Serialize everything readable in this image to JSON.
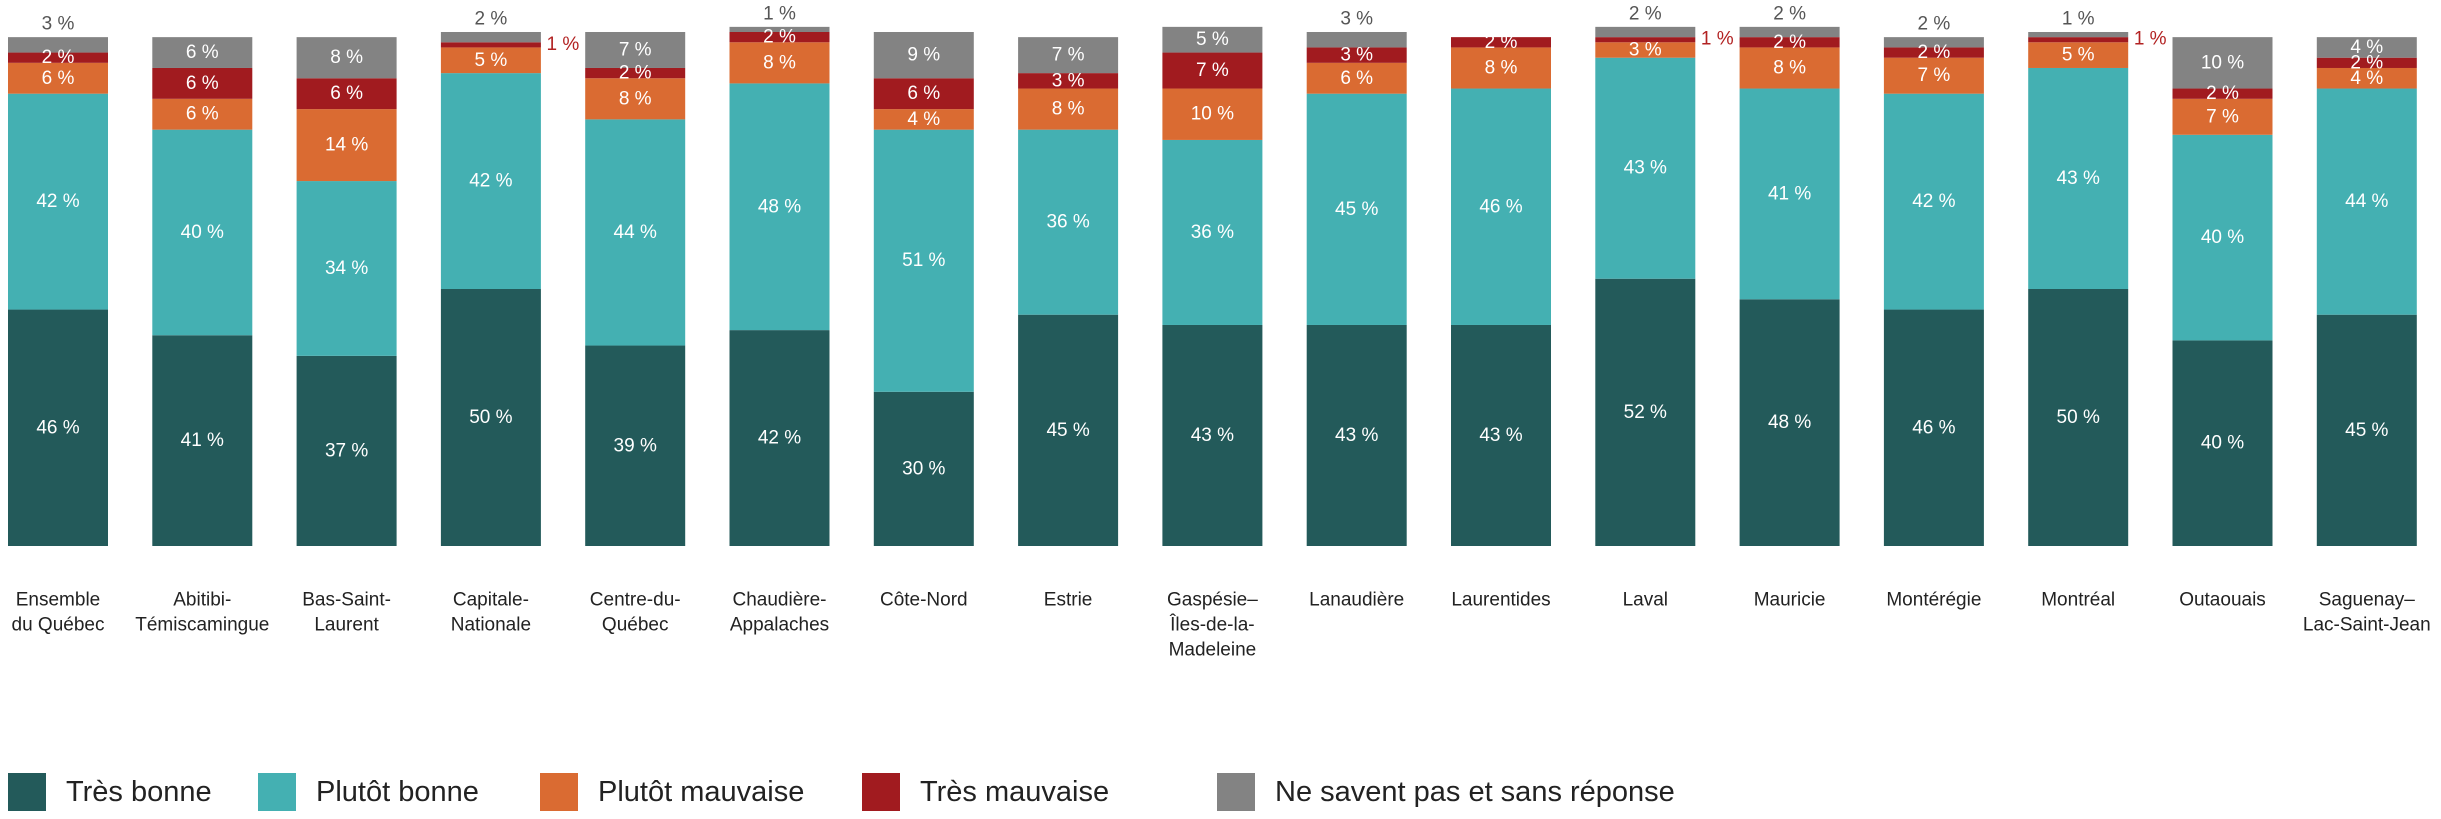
{
  "colors": {
    "tres_bonne": "#235a5a",
    "plutot_bonne": "#44b0b2",
    "plutot_mauvaise": "#da6b32",
    "tres_mauvaise": "#a11b1f",
    "ne_savent_pas": "#838383",
    "inside_label": "#ffffff",
    "above_label": "#555555",
    "outside_red_label": "#b22222"
  },
  "chart_data": {
    "type": "bar",
    "stacked": true,
    "ylim": [
      0,
      100
    ],
    "grid": false,
    "legend_position": "bottom",
    "categories": [
      "Ensemble du Québec",
      "Abitibi-Témiscamingue",
      "Bas-Saint-Laurent",
      "Capitale-Nationale",
      "Centre-du-Québec",
      "Chaudière-Appalaches",
      "Côte-Nord",
      "Estrie",
      "Gaspésie–Îles-de-la-Madeleine",
      "Lanaudière",
      "Laurentides",
      "Laval",
      "Mauricie",
      "Montérégie",
      "Montréal",
      "Outaouais",
      "Saguenay–Lac-Saint-Jean"
    ],
    "category_lines": [
      [
        "Ensemble",
        "du Québec"
      ],
      [
        "Abitibi-",
        "Témiscamingue"
      ],
      [
        "Bas-Saint-",
        "Laurent"
      ],
      [
        "Capitale-",
        "Nationale"
      ],
      [
        "Centre-du-",
        "Québec"
      ],
      [
        "Chaudière-",
        "Appalaches"
      ],
      [
        "Côte-Nord"
      ],
      [
        "Estrie"
      ],
      [
        "Gaspésie–",
        "Îles-de-la-",
        "Madeleine"
      ],
      [
        "Lanaudière"
      ],
      [
        "Laurentides"
      ],
      [
        "Laval"
      ],
      [
        "Mauricie"
      ],
      [
        "Montérégie"
      ],
      [
        "Montréal"
      ],
      [
        "Outaouais"
      ],
      [
        "Saguenay–",
        "Lac-Saint-Jean"
      ]
    ],
    "series": [
      {
        "name": "Très bonne",
        "values": [
          46,
          41,
          37,
          50,
          39,
          42,
          30,
          45,
          43,
          43,
          43,
          52,
          48,
          46,
          50,
          40,
          45
        ]
      },
      {
        "name": "Plutôt bonne",
        "values": [
          42,
          40,
          34,
          42,
          44,
          48,
          51,
          36,
          36,
          45,
          46,
          43,
          41,
          42,
          43,
          40,
          44
        ]
      },
      {
        "name": "Plutôt mauvaise",
        "values": [
          6,
          6,
          14,
          5,
          8,
          8,
          4,
          8,
          10,
          6,
          8,
          3,
          8,
          7,
          5,
          7,
          4
        ]
      },
      {
        "name": "Très mauvaise",
        "values": [
          2,
          6,
          6,
          1,
          2,
          2,
          6,
          3,
          7,
          3,
          2,
          1,
          2,
          2,
          1,
          2,
          2
        ]
      },
      {
        "name": "Ne savent pas et sans réponse",
        "values": [
          3,
          6,
          8,
          2,
          7,
          1,
          9,
          7,
          5,
          3,
          0,
          2,
          2,
          2,
          1,
          10,
          4
        ]
      }
    ],
    "value_suffix": " %"
  }
}
